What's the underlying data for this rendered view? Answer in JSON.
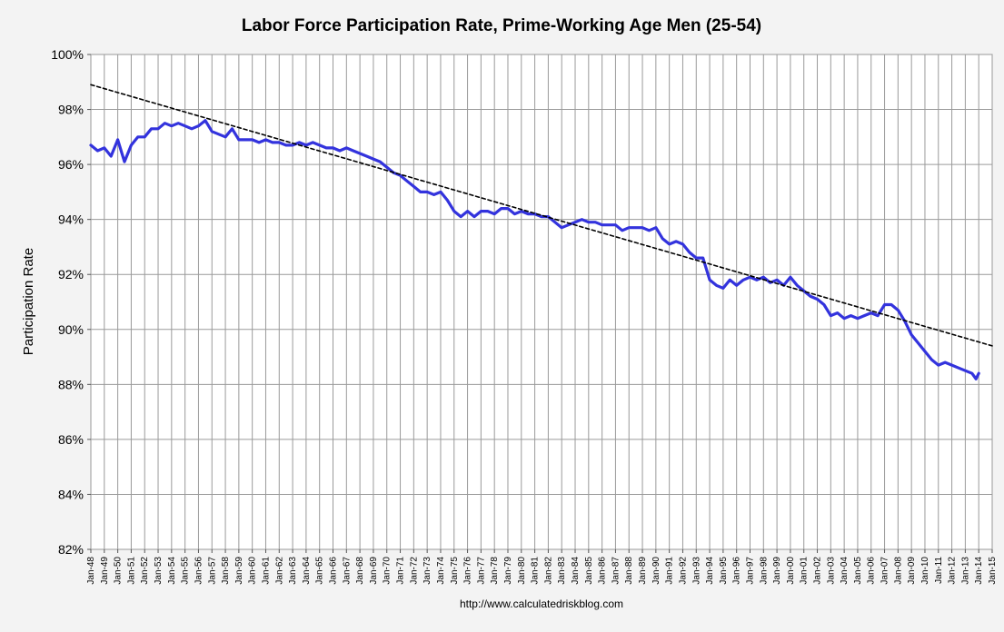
{
  "chart_data": {
    "type": "line",
    "title": "Labor Force Participation Rate, Prime-Working Age Men (25-54)",
    "xlabel": "",
    "ylabel": "Participation Rate",
    "source": "http://www.calculatedriskblog.com",
    "ylim": [
      82,
      100
    ],
    "xlim": [
      1948,
      2015
    ],
    "yticks": [
      82,
      84,
      86,
      88,
      90,
      92,
      94,
      96,
      98,
      100
    ],
    "ytick_labels": [
      "82%",
      "84%",
      "86%",
      "88%",
      "90%",
      "92%",
      "94%",
      "96%",
      "98%",
      "100%"
    ],
    "xtick_labels": [
      "Jan-48",
      "Jan-49",
      "Jan-50",
      "Jan-51",
      "Jan-52",
      "Jan-53",
      "Jan-54",
      "Jan-55",
      "Jan-56",
      "Jan-57",
      "Jan-58",
      "Jan-59",
      "Jan-60",
      "Jan-61",
      "Jan-62",
      "Jan-63",
      "Jan-64",
      "Jan-65",
      "Jan-66",
      "Jan-67",
      "Jan-68",
      "Jan-69",
      "Jan-70",
      "Jan-71",
      "Jan-72",
      "Jan-73",
      "Jan-74",
      "Jan-75",
      "Jan-76",
      "Jan-77",
      "Jan-78",
      "Jan-79",
      "Jan-80",
      "Jan-81",
      "Jan-82",
      "Jan-83",
      "Jan-84",
      "Jan-85",
      "Jan-86",
      "Jan-87",
      "Jan-88",
      "Jan-89",
      "Jan-90",
      "Jan-91",
      "Jan-92",
      "Jan-93",
      "Jan-94",
      "Jan-95",
      "Jan-96",
      "Jan-97",
      "Jan-98",
      "Jan-99",
      "Jan-00",
      "Jan-01",
      "Jan-02",
      "Jan-03",
      "Jan-04",
      "Jan-05",
      "Jan-06",
      "Jan-07",
      "Jan-08",
      "Jan-09",
      "Jan-10",
      "Jan-11",
      "Jan-12",
      "Jan-13",
      "Jan-14",
      "Jan-15"
    ],
    "grid": true,
    "legend": "none",
    "series": [
      {
        "color": "#3333dd",
        "style": "solid",
        "x": [
          1948.0,
          1948.5,
          1949.0,
          1949.5,
          1950.0,
          1950.5,
          1951.0,
          1951.5,
          1952.0,
          1952.5,
          1953.0,
          1953.5,
          1954.0,
          1954.5,
          1955.0,
          1955.5,
          1956.0,
          1956.5,
          1957.0,
          1957.5,
          1958.0,
          1958.5,
          1959.0,
          1959.5,
          1960.0,
          1960.5,
          1961.0,
          1961.5,
          1962.0,
          1962.5,
          1963.0,
          1963.5,
          1964.0,
          1964.5,
          1965.0,
          1965.5,
          1966.0,
          1966.5,
          1967.0,
          1967.5,
          1968.0,
          1968.5,
          1969.0,
          1969.5,
          1970.0,
          1970.5,
          1971.0,
          1971.5,
          1972.0,
          1972.5,
          1973.0,
          1973.5,
          1974.0,
          1974.5,
          1975.0,
          1975.5,
          1976.0,
          1976.5,
          1977.0,
          1977.5,
          1978.0,
          1978.5,
          1979.0,
          1979.5,
          1980.0,
          1980.5,
          1981.0,
          1981.5,
          1982.0,
          1982.5,
          1983.0,
          1983.5,
          1984.0,
          1984.5,
          1985.0,
          1985.5,
          1986.0,
          1986.5,
          1987.0,
          1987.5,
          1988.0,
          1988.5,
          1989.0,
          1989.5,
          1990.0,
          1990.5,
          1991.0,
          1991.5,
          1992.0,
          1992.5,
          1993.0,
          1993.5,
          1994.0,
          1994.5,
          1995.0,
          1995.5,
          1996.0,
          1996.5,
          1997.0,
          1997.5,
          1998.0,
          1998.5,
          1999.0,
          1999.5,
          2000.0,
          2000.5,
          2001.0,
          2001.5,
          2002.0,
          2002.5,
          2003.0,
          2003.5,
          2004.0,
          2004.5,
          2005.0,
          2005.5,
          2006.0,
          2006.5,
          2007.0,
          2007.5,
          2008.0,
          2008.5,
          2009.0,
          2009.5,
          2010.0,
          2010.5,
          2011.0,
          2011.5,
          2012.0,
          2012.5,
          2013.0,
          2013.5,
          2013.8,
          2014.0
        ],
        "y": [
          96.7,
          96.5,
          96.6,
          96.3,
          96.9,
          96.1,
          96.7,
          97.0,
          97.0,
          97.3,
          97.3,
          97.5,
          97.4,
          97.5,
          97.4,
          97.3,
          97.4,
          97.6,
          97.2,
          97.1,
          97.0,
          97.3,
          96.9,
          96.9,
          96.9,
          96.8,
          96.9,
          96.8,
          96.8,
          96.7,
          96.7,
          96.8,
          96.7,
          96.8,
          96.7,
          96.6,
          96.6,
          96.5,
          96.6,
          96.5,
          96.4,
          96.3,
          96.2,
          96.1,
          95.9,
          95.7,
          95.6,
          95.4,
          95.2,
          95.0,
          95.0,
          94.9,
          95.0,
          94.7,
          94.3,
          94.1,
          94.3,
          94.1,
          94.3,
          94.3,
          94.2,
          94.4,
          94.4,
          94.2,
          94.3,
          94.2,
          94.2,
          94.1,
          94.1,
          93.9,
          93.7,
          93.8,
          93.9,
          94.0,
          93.9,
          93.9,
          93.8,
          93.8,
          93.8,
          93.6,
          93.7,
          93.7,
          93.7,
          93.6,
          93.7,
          93.3,
          93.1,
          93.2,
          93.1,
          92.8,
          92.6,
          92.6,
          91.8,
          91.6,
          91.5,
          91.8,
          91.6,
          91.8,
          91.9,
          91.8,
          91.9,
          91.7,
          91.8,
          91.6,
          91.9,
          91.6,
          91.4,
          91.2,
          91.1,
          90.9,
          90.5,
          90.6,
          90.4,
          90.5,
          90.4,
          90.5,
          90.6,
          90.5,
          90.9,
          90.9,
          90.7,
          90.3,
          89.8,
          89.5,
          89.2,
          88.9,
          88.7,
          88.8,
          88.7,
          88.6,
          88.5,
          88.4,
          88.2,
          88.4
        ]
      },
      {
        "color": "#000000",
        "style": "dashed",
        "x": [
          1948.0,
          2015.0
        ],
        "y": [
          98.9,
          89.4
        ]
      }
    ]
  }
}
